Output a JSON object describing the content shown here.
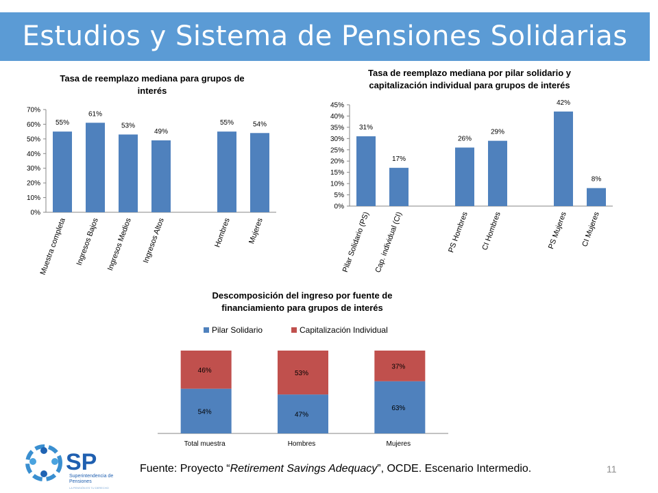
{
  "slide": {
    "title": "Estudios y Sistema de Pensiones Solidarias",
    "page_number": "11",
    "source": {
      "prefix": "Fuente: Proyecto “",
      "italic": "Retirement Savings Adequacy",
      "suffix": "”, OCDE. Escenario Intermedio."
    },
    "logo": {
      "initials": "SP",
      "name_line1": "Superintendencia de",
      "name_line2": "Pensiones",
      "tagline": "LA PENSIÓN ES TU DERECHO"
    }
  },
  "colors": {
    "title_bar": "#5b9bd5",
    "bar_blue": "#4f81bd",
    "bar_red": "#c0504d",
    "axis": "#868686"
  },
  "chart_data": [
    {
      "type": "bar",
      "title": "Tasa de reemplazo mediana para grupos de interés",
      "categories": [
        "Muestra completa",
        "Ingresos Bajos",
        "Ingresos Medios",
        "Ingresos Altos",
        "",
        "Hombres",
        "Mujeres"
      ],
      "values": [
        55,
        61,
        53,
        49,
        null,
        55,
        54
      ],
      "data_labels": [
        "55%",
        "61%",
        "53%",
        "49%",
        "",
        "55%",
        "54%"
      ],
      "ylim": [
        0,
        70
      ],
      "yticks": [
        "0%",
        "10%",
        "20%",
        "30%",
        "40%",
        "50%",
        "60%",
        "70%"
      ],
      "grid": false,
      "legend": "none"
    },
    {
      "type": "bar",
      "title": "Tasa de reemplazo mediana por pilar solidario y capitalización individual para grupos de interés",
      "categories": [
        "Pilar Solidario (PS)",
        "Cap. individual (CI)",
        "",
        "PS Hombres",
        "CI Hombres",
        "",
        "PS Mujeres",
        "CI Mujeres"
      ],
      "values": [
        31,
        17,
        null,
        26,
        29,
        null,
        42,
        8
      ],
      "data_labels": [
        "31%",
        "17%",
        "",
        "26%",
        "29%",
        "",
        "42%",
        "8%"
      ],
      "ylim": [
        0,
        45
      ],
      "yticks": [
        "0%",
        "5%",
        "10%",
        "15%",
        "20%",
        "25%",
        "30%",
        "35%",
        "40%",
        "45%"
      ],
      "grid": false,
      "legend": "none"
    },
    {
      "type": "bar",
      "stacked": true,
      "title": "Descomposición del ingreso por fuente de financiamiento para grupos de interés",
      "categories": [
        "Total muestra",
        "Hombres",
        "Mujeres"
      ],
      "series": [
        {
          "name": "Pilar Solidario",
          "values": [
            54,
            47,
            63
          ],
          "labels": [
            "54%",
            "47%",
            "63%"
          ]
        },
        {
          "name": "Capitalización Individual",
          "values": [
            46,
            53,
            37
          ],
          "labels": [
            "46%",
            "53%",
            "37%"
          ]
        }
      ],
      "ylim": [
        0,
        100
      ],
      "grid": false,
      "legend": "top"
    }
  ]
}
